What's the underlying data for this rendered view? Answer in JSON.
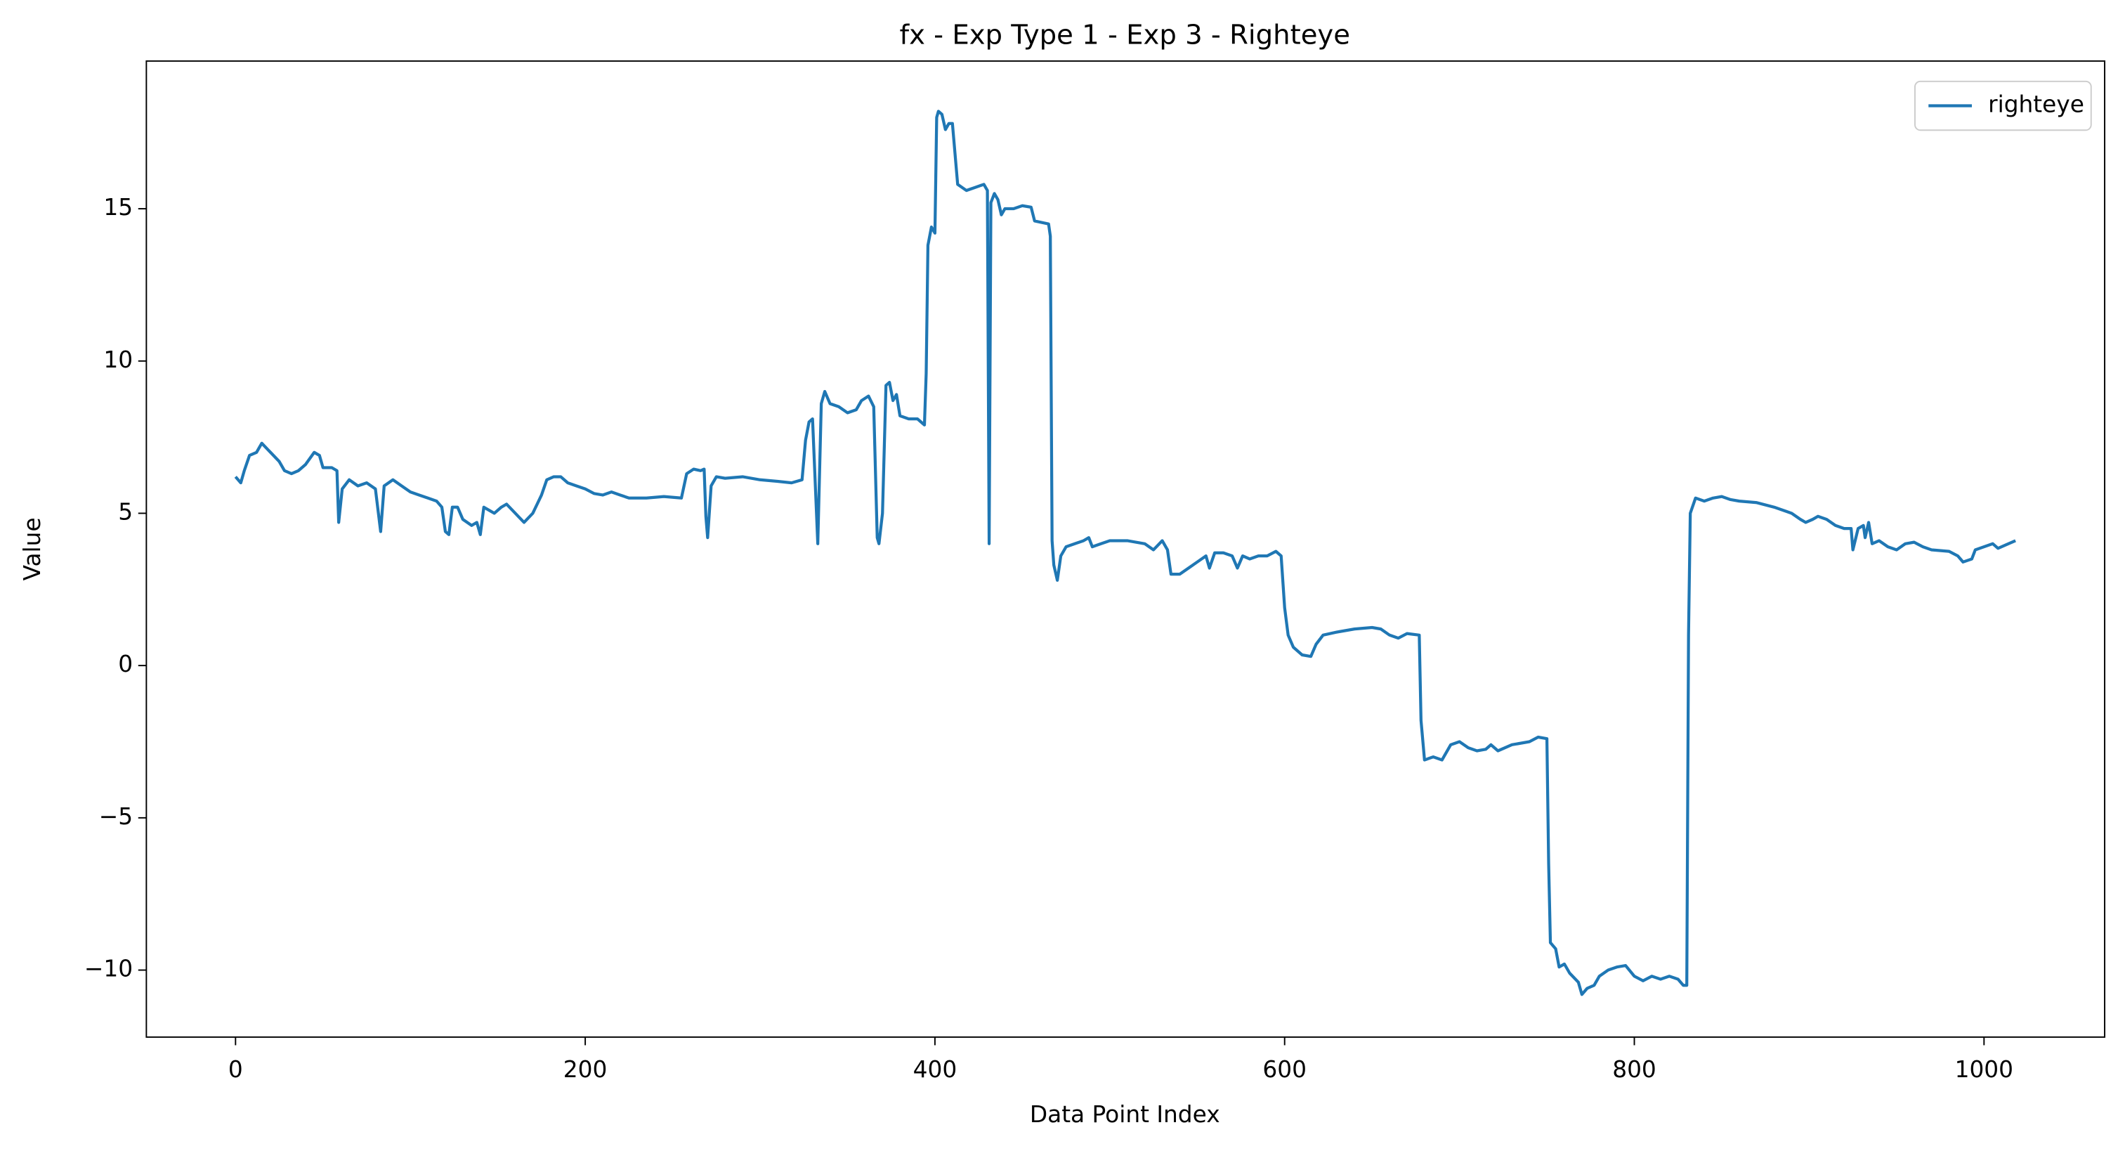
{
  "chart_data": {
    "type": "line",
    "title": "fx - Exp Type 1 - Exp 3 - Righteye",
    "x_label": "Data Point Index",
    "y_label": "Value",
    "legend": "upper right",
    "grid": false,
    "xlim": [
      -51,
      1069
    ],
    "ylim": [
      -12.2,
      19.85
    ],
    "xticks": [
      0,
      200,
      400,
      600,
      800,
      1000
    ],
    "yticks": [
      {
        "value": -10,
        "label": "−10"
      },
      {
        "value": -5,
        "label": "−5"
      },
      0,
      5,
      10,
      15
    ],
    "x": [
      0,
      3,
      5,
      8,
      12,
      15,
      20,
      25,
      28,
      32,
      36,
      40,
      45,
      48,
      50,
      55,
      58,
      59,
      61,
      65,
      70,
      75,
      80,
      83,
      85,
      90,
      95,
      100,
      105,
      110,
      115,
      118,
      120,
      122,
      124,
      127,
      130,
      135,
      138,
      140,
      142,
      145,
      148,
      152,
      155,
      160,
      165,
      170,
      175,
      178,
      182,
      186,
      190,
      195,
      200,
      205,
      210,
      215,
      220,
      225,
      235,
      245,
      255,
      258,
      262,
      266,
      268,
      269,
      270,
      272,
      275,
      280,
      290,
      300,
      310,
      318,
      324,
      326,
      328,
      330,
      333,
      335,
      337,
      340,
      345,
      350,
      355,
      358,
      362,
      365,
      367,
      368,
      370,
      372,
      374,
      376,
      378,
      380,
      385,
      390,
      394,
      395,
      396,
      398,
      400,
      401,
      402,
      404,
      406,
      408,
      410,
      413,
      418,
      423,
      428,
      430,
      431,
      432,
      434,
      436,
      438,
      440,
      445,
      450,
      455,
      457,
      465,
      466,
      467,
      468,
      470,
      472,
      475,
      480,
      485,
      488,
      490,
      495,
      500,
      510,
      520,
      525,
      530,
      533,
      535,
      540,
      545,
      550,
      555,
      557,
      560,
      565,
      570,
      573,
      576,
      580,
      585,
      590,
      595,
      598,
      600,
      602,
      605,
      610,
      615,
      618,
      622,
      630,
      640,
      650,
      655,
      660,
      665,
      670,
      677,
      678,
      680,
      685,
      690,
      695,
      700,
      705,
      710,
      715,
      718,
      722,
      730,
      740,
      745,
      750,
      751,
      752,
      755,
      757,
      760,
      763,
      768,
      770,
      773,
      777,
      780,
      785,
      790,
      795,
      800,
      805,
      810,
      815,
      820,
      825,
      828,
      830,
      831,
      832,
      835,
      840,
      845,
      850,
      855,
      860,
      870,
      880,
      890,
      895,
      898,
      902,
      905,
      910,
      915,
      920,
      924,
      925,
      928,
      931,
      932,
      934,
      936,
      940,
      945,
      950,
      955,
      960,
      965,
      970,
      980,
      985,
      988,
      993,
      995,
      1000,
      1005,
      1008,
      1012,
      1018
    ],
    "series": [
      {
        "name": "righteye",
        "color": "#1f77b4",
        "values": [
          6.2,
          6.0,
          6.4,
          6.9,
          7.0,
          7.3,
          7.0,
          6.7,
          6.4,
          6.3,
          6.4,
          6.6,
          7.0,
          6.9,
          6.5,
          6.5,
          6.4,
          4.7,
          5.8,
          6.1,
          5.9,
          6.0,
          5.8,
          4.4,
          5.9,
          6.1,
          5.9,
          5.7,
          5.6,
          5.5,
          5.4,
          5.2,
          4.4,
          4.3,
          5.2,
          5.2,
          4.8,
          4.6,
          4.7,
          4.3,
          5.2,
          5.1,
          5.0,
          5.2,
          5.3,
          5.0,
          4.7,
          5.0,
          5.6,
          6.1,
          6.2,
          6.2,
          6.0,
          5.9,
          5.8,
          5.65,
          5.6,
          5.7,
          5.6,
          5.5,
          5.5,
          5.55,
          5.5,
          6.3,
          6.45,
          6.4,
          6.45,
          4.9,
          4.2,
          5.9,
          6.2,
          6.15,
          6.2,
          6.1,
          6.05,
          6.0,
          6.1,
          7.4,
          8.0,
          8.1,
          4.0,
          8.6,
          9.0,
          8.6,
          8.5,
          8.3,
          8.4,
          8.7,
          8.85,
          8.5,
          4.2,
          4.0,
          5.0,
          9.2,
          9.3,
          8.7,
          8.9,
          8.2,
          8.1,
          8.1,
          7.9,
          9.6,
          13.8,
          14.4,
          14.2,
          18.0,
          18.2,
          18.1,
          17.6,
          17.8,
          17.8,
          15.8,
          15.6,
          15.7,
          15.8,
          15.6,
          4.0,
          15.2,
          15.5,
          15.3,
          14.8,
          15.0,
          15.0,
          15.1,
          15.05,
          14.6,
          14.5,
          14.1,
          4.1,
          3.3,
          2.8,
          3.6,
          3.9,
          4.0,
          4.1,
          4.2,
          3.9,
          4.0,
          4.1,
          4.1,
          4.0,
          3.8,
          4.1,
          3.8,
          3.0,
          3.0,
          3.2,
          3.4,
          3.6,
          3.2,
          3.7,
          3.7,
          3.6,
          3.2,
          3.6,
          3.5,
          3.6,
          3.6,
          3.75,
          3.6,
          1.9,
          1.0,
          0.6,
          0.35,
          0.3,
          0.7,
          1.0,
          1.1,
          1.2,
          1.25,
          1.2,
          1.0,
          0.9,
          1.05,
          1.0,
          -1.8,
          -3.1,
          -3.0,
          -3.1,
          -2.6,
          -2.5,
          -2.7,
          -2.8,
          -2.75,
          -2.6,
          -2.8,
          -2.6,
          -2.5,
          -2.35,
          -2.4,
          -6.5,
          -9.1,
          -9.3,
          -9.9,
          -9.8,
          -10.1,
          -10.4,
          -10.8,
          -10.6,
          -10.5,
          -10.2,
          -10.0,
          -9.9,
          -9.85,
          -10.2,
          -10.35,
          -10.2,
          -10.3,
          -10.2,
          -10.3,
          -10.5,
          -10.5,
          1.0,
          5.0,
          5.5,
          5.4,
          5.5,
          5.55,
          5.45,
          5.4,
          5.35,
          5.2,
          5.0,
          4.8,
          4.7,
          4.8,
          4.9,
          4.8,
          4.6,
          4.5,
          4.5,
          3.8,
          4.5,
          4.6,
          4.2,
          4.7,
          4.0,
          4.1,
          3.9,
          3.8,
          4.0,
          4.05,
          3.9,
          3.8,
          3.75,
          3.6,
          3.4,
          3.5,
          3.8,
          3.9,
          4.0,
          3.85,
          3.95,
          4.1
        ]
      }
    ]
  }
}
